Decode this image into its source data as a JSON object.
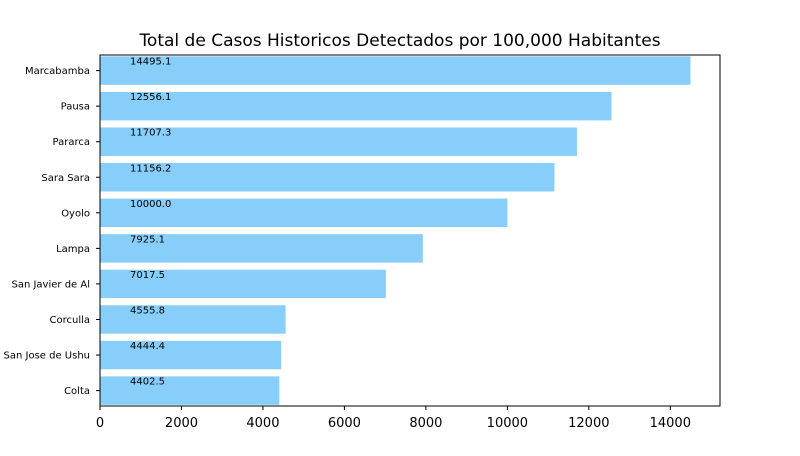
{
  "chart_data": {
    "type": "bar",
    "orientation": "horizontal",
    "title": "Total de Casos Historicos Detectados por 100,000 Habitantes",
    "xlabel": "",
    "ylabel": "",
    "categories": [
      "Colta",
      "San Jose de Ushu",
      "Corculla",
      "San Javier de Al",
      "Lampa",
      "Oyolo",
      "Sara Sara",
      "Pararca",
      "Pausa",
      "Marcabamba"
    ],
    "values": [
      4402.5,
      4444.4,
      4555.8,
      7017.5,
      7925.1,
      10000.0,
      11156.2,
      11707.3,
      12556.1,
      14495.1
    ],
    "data_labels": [
      "4402.5",
      "4444.4",
      "4555.8",
      "7017.5",
      "7925.1",
      "10000.0",
      "11156.2",
      "11707.3",
      "12556.1",
      "14495.1"
    ],
    "xlim": [
      0,
      15220
    ],
    "xticks": [
      0,
      2000,
      4000,
      6000,
      8000,
      10000,
      12000,
      14000
    ],
    "bar_color": "#87CEFA",
    "grid": false,
    "legend": "none"
  }
}
